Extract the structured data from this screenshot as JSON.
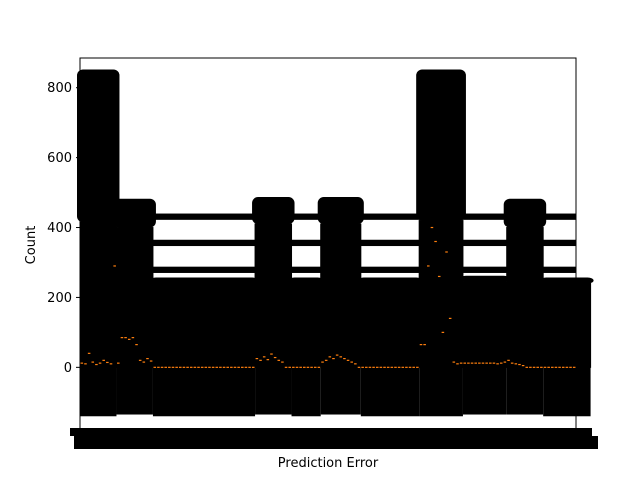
{
  "chart_data": {
    "type": "box",
    "title": "",
    "xlabel": "Prediction Error",
    "ylabel": "Count",
    "ylim": [
      -185,
      885
    ],
    "yticks": [
      0,
      200,
      400,
      600,
      800
    ],
    "grid": false,
    "legend": "none",
    "colors": {
      "box": "#000000",
      "median": "#ff7f0e"
    },
    "groups": [
      {
        "from": 0,
        "to": 9,
        "box_low": 0,
        "box_high": 415,
        "whisker_low": -140,
        "whisker_high": 835
      },
      {
        "from": 10,
        "to": 19,
        "box_low": 0,
        "box_high": 400,
        "whisker_low": -135,
        "whisker_high": 465
      },
      {
        "from": 20,
        "to": 47,
        "box_low": 0,
        "box_high": 240,
        "whisker_low": -140,
        "whisker_high": 240
      },
      {
        "from": 48,
        "to": 57,
        "box_low": 0,
        "box_high": 410,
        "whisker_low": -135,
        "whisker_high": 470
      },
      {
        "from": 58,
        "to": 65,
        "box_low": 0,
        "box_high": 240,
        "whisker_low": -140,
        "whisker_high": 240
      },
      {
        "from": 66,
        "to": 76,
        "box_low": 0,
        "box_high": 410,
        "whisker_low": -135,
        "whisker_high": 470
      },
      {
        "from": 77,
        "to": 92,
        "box_low": 0,
        "box_high": 240,
        "whisker_low": -140,
        "whisker_high": 240
      },
      {
        "from": 93,
        "to": 104,
        "box_low": 0,
        "box_high": 420,
        "whisker_low": -140,
        "whisker_high": 835
      },
      {
        "from": 105,
        "to": 116,
        "box_low": 0,
        "box_high": 245,
        "whisker_low": -135,
        "whisker_high": 245
      },
      {
        "from": 117,
        "to": 126,
        "box_low": 0,
        "box_high": 400,
        "whisker_low": -135,
        "whisker_high": 465
      },
      {
        "from": 127,
        "to": 139,
        "box_low": 0,
        "box_high": 240,
        "whisker_low": -140,
        "whisker_high": 240
      }
    ],
    "medians": [
      12,
      10,
      40,
      15,
      8,
      12,
      20,
      14,
      10,
      290,
      12,
      85,
      85,
      80,
      85,
      65,
      20,
      15,
      25,
      18,
      0,
      0,
      0,
      0,
      0,
      0,
      0,
      0,
      0,
      0,
      0,
      0,
      0,
      0,
      0,
      0,
      0,
      0,
      0,
      0,
      0,
      0,
      0,
      0,
      0,
      0,
      0,
      0,
      25,
      20,
      30,
      22,
      38,
      28,
      20,
      15,
      0,
      0,
      0,
      0,
      0,
      0,
      0,
      0,
      0,
      0,
      15,
      20,
      30,
      25,
      35,
      30,
      25,
      20,
      15,
      10,
      0,
      0,
      0,
      0,
      0,
      0,
      0,
      0,
      0,
      0,
      0,
      0,
      0,
      0,
      0,
      0,
      0,
      65,
      65,
      290,
      400,
      360,
      260,
      100,
      330,
      140,
      15,
      10,
      12,
      12,
      12,
      12,
      12,
      12,
      12,
      12,
      12,
      12,
      10,
      12,
      15,
      20,
      12,
      10,
      8,
      5,
      0,
      0,
      0,
      0,
      0,
      0,
      0,
      0,
      0,
      0,
      0,
      0,
      0,
      0
    ]
  }
}
